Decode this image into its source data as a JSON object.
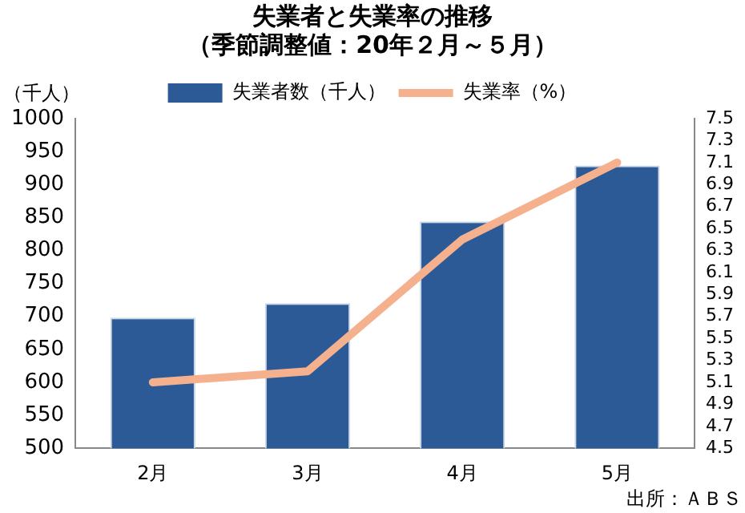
{
  "chart_data": {
    "type": "bar",
    "title": "失業者と失業率の推移",
    "subtitle": "（季節調整値：20年２月～５月）",
    "ylabel": "（千人）",
    "annotations": [
      "出所：ＡＢＳ"
    ],
    "categories": [
      "2月",
      "3月",
      "4月",
      "5月"
    ],
    "series": [
      {
        "name": "失業者数（千人）",
        "color": "#2c5a96",
        "values": [
          698,
          720,
          844,
          929
        ]
      },
      {
        "name": "失業率（%）",
        "type": "line",
        "axis": "y2",
        "color": "#f5b08e",
        "values": [
          5.1,
          5.2,
          6.4,
          7.1
        ]
      }
    ],
    "ylim": [
      500,
      1000
    ],
    "yticks": [
      500,
      550,
      600,
      650,
      700,
      750,
      800,
      850,
      900,
      950,
      1000
    ],
    "y2lim": [
      4.5,
      7.5
    ],
    "y2ticks": [
      4.5,
      4.7,
      4.9,
      5.1,
      5.3,
      5.5,
      5.7,
      5.9,
      6.1,
      6.3,
      6.5,
      6.7,
      6.9,
      7.1,
      7.3,
      7.5
    ],
    "grid": false,
    "legend": "top",
    "marker": "none"
  }
}
